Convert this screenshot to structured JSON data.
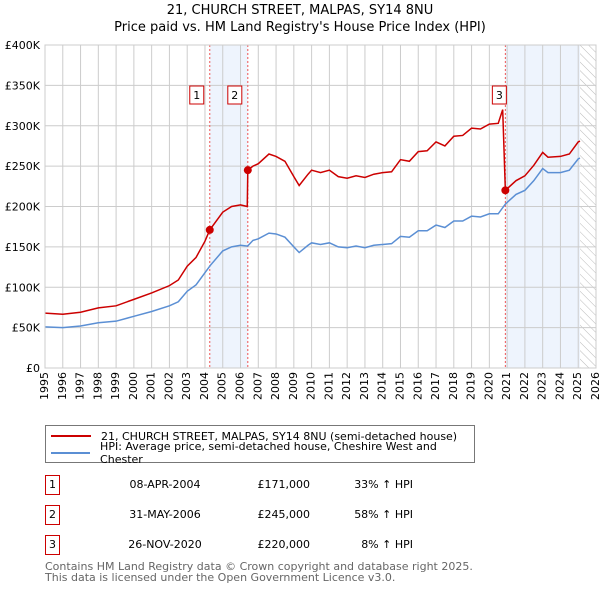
{
  "chart_data": {
    "type": "line",
    "title": "21, CHURCH STREET, MALPAS, SY14 8NU",
    "subtitle": "Price paid vs. HM Land Registry's House Price Index (HPI)",
    "xlim": [
      1995,
      2026
    ],
    "ylim": [
      0,
      400000
    ],
    "grid": true,
    "y_ticks": [
      {
        "v": 0,
        "label": "£0"
      },
      {
        "v": 50000,
        "label": "£50K"
      },
      {
        "v": 100000,
        "label": "£100K"
      },
      {
        "v": 150000,
        "label": "£150K"
      },
      {
        "v": 200000,
        "label": "£200K"
      },
      {
        "v": 250000,
        "label": "£250K"
      },
      {
        "v": 300000,
        "label": "£300K"
      },
      {
        "v": 350000,
        "label": "£350K"
      },
      {
        "v": 400000,
        "label": "£400K"
      }
    ],
    "x_ticks": [
      "1995",
      "1996",
      "1997",
      "1998",
      "1999",
      "2000",
      "2001",
      "2002",
      "2003",
      "2004",
      "2005",
      "2006",
      "2007",
      "2008",
      "2009",
      "2010",
      "2011",
      "2012",
      "2013",
      "2014",
      "2015",
      "2016",
      "2017",
      "2018",
      "2019",
      "2020",
      "2021",
      "2022",
      "2023",
      "2024",
      "2025",
      "2026"
    ],
    "shaded_ranges": [
      [
        2004.27,
        2006.41
      ],
      [
        2020.9,
        2025.1
      ]
    ],
    "hatched_range": [
      2025.1,
      2026
    ],
    "colors": {
      "property": "#cc0000",
      "hpi": "#5b8fd4",
      "shade": "#eef4fd",
      "sale_line": "#ee5555"
    },
    "series": [
      {
        "name": "21, CHURCH STREET, MALPAS, SY14 8NU (semi-detached house)",
        "color": "#cc0000",
        "points": [
          [
            1995,
            68
          ],
          [
            1996,
            66.5
          ],
          [
            1997,
            69
          ],
          [
            1998,
            74.5
          ],
          [
            1999,
            77
          ],
          [
            2000,
            85
          ],
          [
            2001,
            93
          ],
          [
            2002,
            102
          ],
          [
            2002.5,
            109
          ],
          [
            2003,
            126
          ],
          [
            2003.5,
            137
          ],
          [
            2004,
            157
          ],
          [
            2004.27,
            171
          ],
          [
            2005,
            193
          ],
          [
            2005.5,
            200
          ],
          [
            2006,
            202
          ],
          [
            2006.38,
            200
          ],
          [
            2006.41,
            245
          ],
          [
            2006.7,
            250
          ],
          [
            2007,
            253
          ],
          [
            2007.6,
            265
          ],
          [
            2008,
            262
          ],
          [
            2008.5,
            256
          ],
          [
            2009,
            237
          ],
          [
            2009.3,
            226
          ],
          [
            2009.8,
            240
          ],
          [
            2010,
            245
          ],
          [
            2010.5,
            242
          ],
          [
            2011,
            245
          ],
          [
            2011.5,
            237
          ],
          [
            2012,
            235
          ],
          [
            2012.5,
            238
          ],
          [
            2013,
            236
          ],
          [
            2013.5,
            240
          ],
          [
            2014,
            242
          ],
          [
            2014.5,
            243
          ],
          [
            2015,
            258
          ],
          [
            2015.5,
            256
          ],
          [
            2016,
            268
          ],
          [
            2016.5,
            269
          ],
          [
            2017,
            280
          ],
          [
            2017.5,
            275
          ],
          [
            2018,
            287
          ],
          [
            2018.5,
            288
          ],
          [
            2019,
            297
          ],
          [
            2019.5,
            296
          ],
          [
            2020,
            302
          ],
          [
            2020.5,
            303
          ],
          [
            2020.75,
            320
          ],
          [
            2020.9,
            220
          ],
          [
            2021.5,
            232
          ],
          [
            2022,
            238
          ],
          [
            2022.5,
            251
          ],
          [
            2023,
            267
          ],
          [
            2023.3,
            261
          ],
          [
            2024,
            262
          ],
          [
            2024.5,
            265
          ],
          [
            2025,
            280
          ],
          [
            2025.1,
            281
          ]
        ]
      },
      {
        "name": "HPI: Average price, semi-detached house, Cheshire West and Chester",
        "color": "#5b8fd4",
        "points": [
          [
            1995,
            51
          ],
          [
            1996,
            50
          ],
          [
            1997,
            52
          ],
          [
            1998,
            56
          ],
          [
            1999,
            58
          ],
          [
            2000,
            64
          ],
          [
            2001,
            70
          ],
          [
            2002,
            77
          ],
          [
            2002.5,
            82
          ],
          [
            2003,
            95
          ],
          [
            2003.5,
            103
          ],
          [
            2004,
            118
          ],
          [
            2004.3,
            127
          ],
          [
            2005,
            145
          ],
          [
            2005.5,
            150
          ],
          [
            2006,
            152
          ],
          [
            2006.4,
            151
          ],
          [
            2006.7,
            158
          ],
          [
            2007,
            160
          ],
          [
            2007.6,
            167
          ],
          [
            2008,
            166
          ],
          [
            2008.5,
            162
          ],
          [
            2009,
            150
          ],
          [
            2009.3,
            143
          ],
          [
            2009.8,
            152
          ],
          [
            2010,
            155
          ],
          [
            2010.5,
            153
          ],
          [
            2011,
            155
          ],
          [
            2011.5,
            150
          ],
          [
            2012,
            149
          ],
          [
            2012.5,
            151
          ],
          [
            2013,
            149
          ],
          [
            2013.5,
            152
          ],
          [
            2014,
            153
          ],
          [
            2014.5,
            154
          ],
          [
            2015,
            163
          ],
          [
            2015.5,
            162
          ],
          [
            2016,
            170
          ],
          [
            2016.5,
            170
          ],
          [
            2017,
            177
          ],
          [
            2017.5,
            174
          ],
          [
            2018,
            182
          ],
          [
            2018.5,
            182
          ],
          [
            2019,
            188
          ],
          [
            2019.5,
            187
          ],
          [
            2020,
            191
          ],
          [
            2020.5,
            191
          ],
          [
            2020.9,
            203
          ],
          [
            2021.5,
            215
          ],
          [
            2022,
            220
          ],
          [
            2022.5,
            232
          ],
          [
            2023,
            247
          ],
          [
            2023.3,
            242
          ],
          [
            2024,
            242
          ],
          [
            2024.5,
            245
          ],
          [
            2025,
            259
          ],
          [
            2025.1,
            260
          ]
        ]
      }
    ],
    "sales": [
      {
        "label": "1",
        "x": 2004.27,
        "value": 171000,
        "date": "08-APR-2004",
        "price": "£171,000",
        "hpi": "33% ↑ HPI"
      },
      {
        "label": "2",
        "x": 2006.41,
        "value": 245000,
        "date": "31-MAY-2006",
        "price": "£245,000",
        "hpi": "58% ↑ HPI"
      },
      {
        "label": "3",
        "x": 2020.9,
        "value": 220000,
        "date": "26-NOV-2020",
        "price": "£220,000",
        "hpi": "8% ↑ HPI"
      }
    ]
  },
  "footer": [
    "Contains HM Land Registry data © Crown copyright and database right 2025.",
    "This data is licensed under the Open Government Licence v3.0."
  ]
}
